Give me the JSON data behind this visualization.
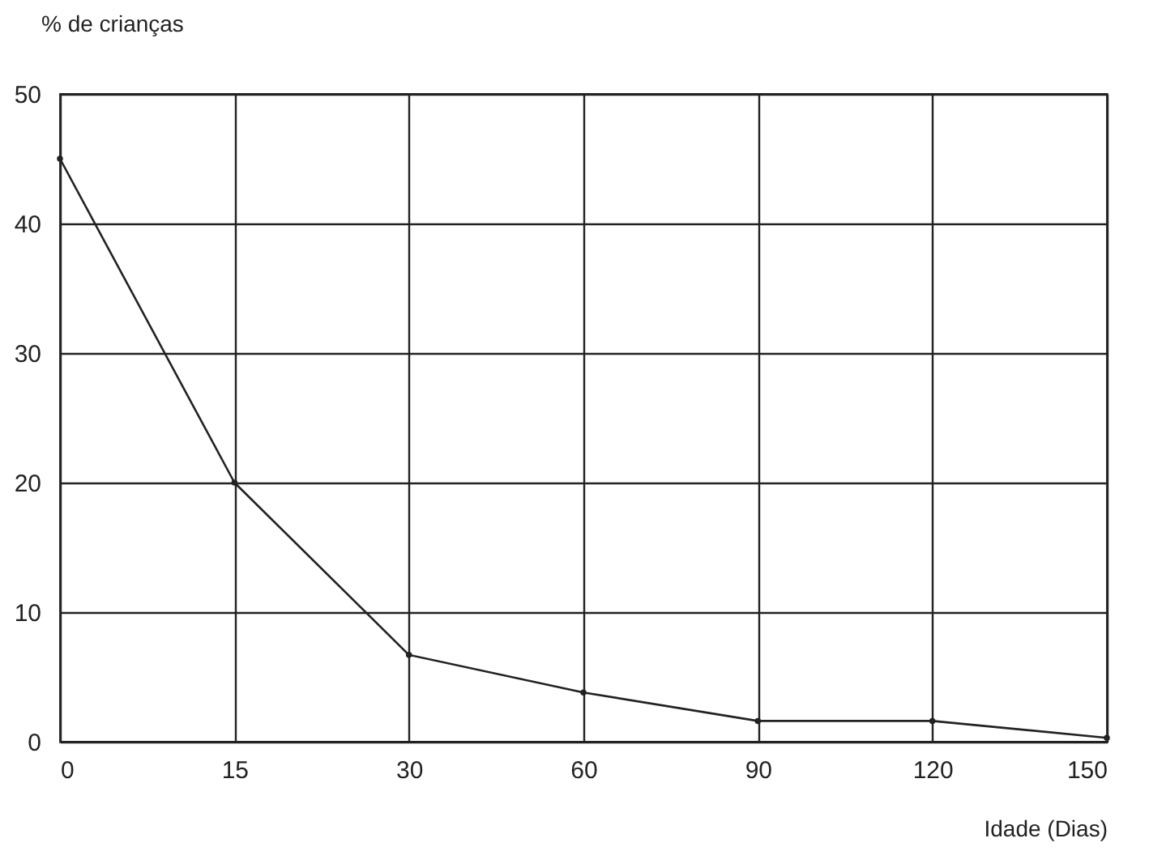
{
  "chart_data": {
    "type": "line",
    "xlabel": "Idade (Dias)",
    "ylabel": "% de crianças",
    "categories": [
      "0",
      "15",
      "30",
      "60",
      "90",
      "120",
      "150"
    ],
    "series": [
      {
        "color": "#222222",
        "values": [
          45,
          20,
          6.7,
          3.8,
          1.6,
          1.6,
          0.3
        ]
      }
    ],
    "ylim": [
      0,
      50
    ],
    "yticks": [
      0,
      10,
      20,
      30,
      40,
      50
    ],
    "grid": true,
    "marker": "circle",
    "line_style": "solid"
  }
}
